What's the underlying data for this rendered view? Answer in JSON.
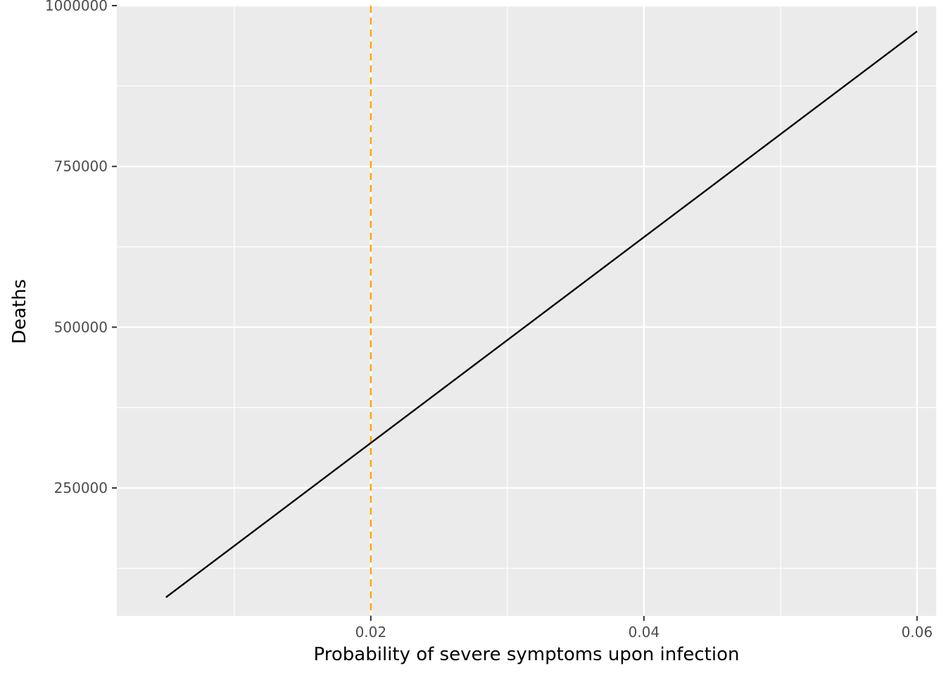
{
  "chart_data": {
    "type": "line",
    "xlabel": "Probability of severe symptoms upon infection",
    "ylabel": "Deaths",
    "xlim": [
      0.0014,
      0.0614
    ],
    "ylim": [
      51000,
      1000000
    ],
    "x_ticks": [
      0.02,
      0.04,
      0.06
    ],
    "x_tick_labels": [
      "0.02",
      "0.04",
      "0.06"
    ],
    "x_minor_ticks": [
      0.01,
      0.03,
      0.05
    ],
    "y_ticks": [
      250000,
      500000,
      750000,
      1000000
    ],
    "y_tick_labels": [
      "250000",
      "500000",
      "750000",
      "1000000"
    ],
    "y_minor_ticks": [
      125000,
      375000,
      625000,
      875000
    ],
    "grid": true,
    "series": [
      {
        "x": [
          0.005,
          0.06
        ],
        "y": [
          80000,
          960000
        ],
        "color": "#000000"
      }
    ],
    "vline": {
      "x": 0.02,
      "color": "#FFA500",
      "style": "dashed"
    },
    "colors": {
      "panel": "#EBEBEB",
      "grid": "#FFFFFF",
      "line": "#000000",
      "vline": "#FFA500",
      "tick_text": "#4D4D4D"
    }
  }
}
